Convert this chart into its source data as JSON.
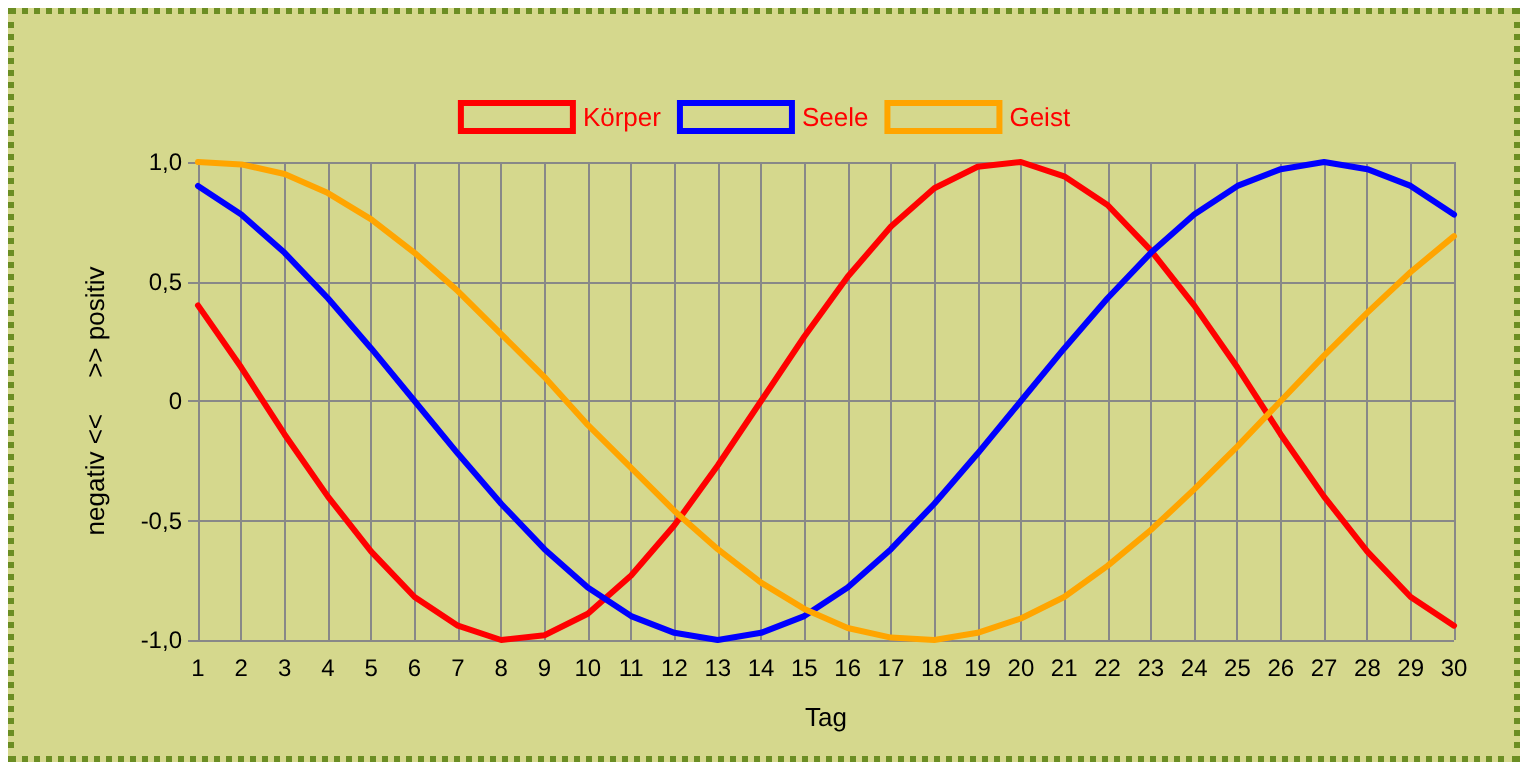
{
  "chart_data": {
    "type": "line",
    "xlabel": "Tag",
    "ylabel": "negativ <<     >> positiv",
    "x": [
      1,
      2,
      3,
      4,
      5,
      6,
      7,
      8,
      9,
      10,
      11,
      12,
      13,
      14,
      15,
      16,
      17,
      18,
      19,
      20,
      21,
      22,
      23,
      24,
      25,
      26,
      27,
      28,
      29,
      30
    ],
    "series": [
      {
        "name": "Körper",
        "color": "#ff0000",
        "values": [
          0.4,
          0.14,
          -0.14,
          -0.4,
          -0.63,
          -0.82,
          -0.94,
          -1.0,
          -0.98,
          -0.89,
          -0.73,
          -0.52,
          -0.27,
          0.0,
          0.27,
          0.52,
          0.73,
          0.89,
          0.98,
          1.0,
          0.94,
          0.82,
          0.63,
          0.4,
          0.14,
          -0.14,
          -0.4,
          -0.63,
          -0.82,
          -0.94
        ]
      },
      {
        "name": "Seele",
        "color": "#0000ff",
        "values": [
          0.9,
          0.78,
          0.62,
          0.43,
          0.22,
          0.0,
          -0.22,
          -0.43,
          -0.62,
          -0.78,
          -0.9,
          -0.97,
          -1.0,
          -0.97,
          -0.9,
          -0.78,
          -0.62,
          -0.43,
          -0.22,
          0.0,
          0.22,
          0.43,
          0.62,
          0.78,
          0.9,
          0.97,
          1.0,
          0.97,
          0.9,
          0.78
        ]
      },
      {
        "name": "Geist",
        "color": "#ffa500",
        "values": [
          1.0,
          0.99,
          0.95,
          0.87,
          0.76,
          0.62,
          0.46,
          0.28,
          0.1,
          -0.1,
          -0.28,
          -0.46,
          -0.62,
          -0.76,
          -0.87,
          -0.95,
          -0.99,
          -1.0,
          -0.97,
          -0.91,
          -0.82,
          -0.69,
          -0.54,
          -0.37,
          -0.19,
          0.0,
          0.19,
          0.37,
          0.54,
          0.69
        ]
      }
    ],
    "xlim": [
      1,
      30
    ],
    "xticks": [
      1,
      2,
      3,
      4,
      5,
      6,
      7,
      8,
      9,
      10,
      11,
      12,
      13,
      14,
      15,
      16,
      17,
      18,
      19,
      20,
      21,
      22,
      23,
      24,
      25,
      26,
      27,
      28,
      29,
      30
    ],
    "ylim": [
      -1,
      1
    ],
    "yticks": [
      {
        "value": -1,
        "label": "-1,0"
      },
      {
        "value": -0.5,
        "label": "-0,5"
      },
      0,
      {
        "value": 0.5,
        "label": "0,5"
      },
      {
        "value": 1,
        "label": "1,0"
      }
    ],
    "grid": true,
    "legend": "top",
    "marker": "none",
    "line_style": "solid"
  }
}
